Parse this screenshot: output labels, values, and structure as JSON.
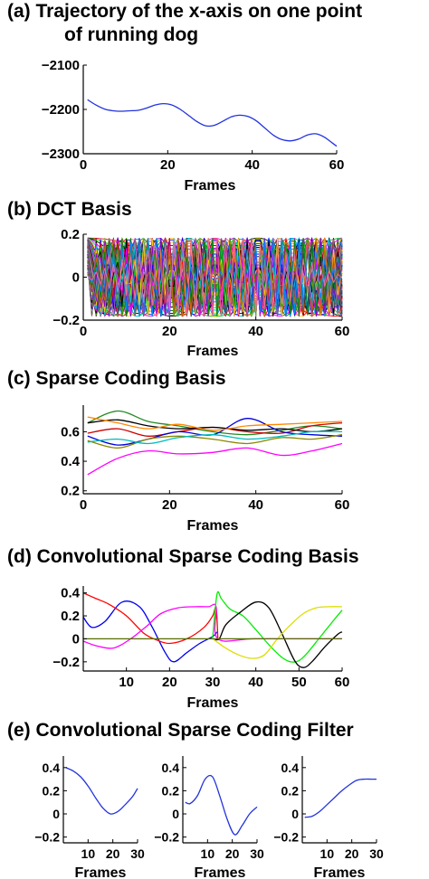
{
  "caption": "Fig. ... (a) Trajectory of the x-axis on one point of running dog ... (b) DCT basis ... (c) sparse coding basis ... (d) convolutional sparse coding basis ... (e) convolutional sparse coding filter",
  "panels_text": {
    "a_title_line1": "(a) Trajectory of the x-axis on one point",
    "a_title_line2": "of running dog",
    "b_title": "(b) DCT Basis",
    "c_title": "(c) Sparse Coding Basis",
    "d_title": "(d) Convolutional Sparse Coding Basis",
    "e_title": "(e) Convolutional Sparse Coding Filter"
  },
  "chart_data": [
    {
      "id": "a",
      "type": "line",
      "title": "(a) Trajectory of the x-axis on one point of running dog",
      "xlabel": "Frames",
      "ylabel": "",
      "xlim": [
        0,
        60
      ],
      "ylim": [
        -2300,
        -2100
      ],
      "xticks": [
        "0",
        "20",
        "40",
        "60"
      ],
      "yticks": [
        "−2100",
        "−2200",
        "−2300"
      ],
      "series": [
        {
          "color": "#2233dd",
          "x": [
            1,
            3,
            5,
            7,
            9,
            11,
            13,
            15,
            17,
            19,
            21,
            23,
            25,
            27,
            29,
            31,
            33,
            35,
            37,
            39,
            41,
            43,
            45,
            47,
            49,
            51,
            53,
            55,
            57,
            59,
            60
          ],
          "y": [
            -2178,
            -2190,
            -2199,
            -2203,
            -2204,
            -2203,
            -2202,
            -2197,
            -2190,
            -2187,
            -2190,
            -2200,
            -2214,
            -2228,
            -2237,
            -2236,
            -2227,
            -2217,
            -2213,
            -2216,
            -2226,
            -2242,
            -2258,
            -2268,
            -2271,
            -2267,
            -2258,
            -2255,
            -2262,
            -2276,
            -2283
          ]
        }
      ]
    },
    {
      "id": "b",
      "type": "line",
      "title": "(b) DCT Basis",
      "xlabel": "Frames",
      "ylabel": "",
      "xlim": [
        0,
        60
      ],
      "ylim": [
        -0.2,
        0.2
      ],
      "xticks": [
        "0",
        "20",
        "40",
        "60"
      ],
      "yticks": [
        "0.2",
        "0",
        "−0.2"
      ],
      "n_points": 60,
      "amplitude": 0.1826,
      "basis_indices": [
        0,
        1,
        2,
        3,
        4,
        5,
        6,
        7,
        8,
        9,
        10,
        11,
        12,
        13,
        14,
        15,
        16,
        17,
        18,
        19,
        20,
        21,
        22,
        23,
        24,
        25,
        26,
        27,
        28,
        29,
        30,
        31,
        32,
        33,
        34,
        35,
        36,
        37,
        38,
        39,
        40,
        41,
        42,
        43,
        44,
        45,
        46,
        47,
        48,
        49,
        50,
        51,
        52,
        53,
        54,
        55,
        56,
        57,
        58,
        59
      ],
      "colors": [
        "#0000ff",
        "#ff0000",
        "#00cc00",
        "#000000",
        "#ff00ff",
        "#00cccc",
        "#ffcc00",
        "#8800cc",
        "#cc6600",
        "#008800",
        "#0088ff",
        "#ff6699"
      ]
    },
    {
      "id": "c",
      "type": "line",
      "title": "(c) Sparse Coding Basis",
      "xlabel": "Frames",
      "ylabel": "",
      "xlim": [
        0,
        60
      ],
      "ylim": [
        0.18,
        0.78
      ],
      "xticks": [
        "0",
        "20",
        "40",
        "60"
      ],
      "yticks": [
        "0.6",
        "0.4",
        "0.2"
      ],
      "series": [
        {
          "color": "#228b22",
          "x": [
            1,
            8,
            15,
            22,
            30,
            38,
            46,
            53,
            60
          ],
          "y": [
            0.66,
            0.74,
            0.67,
            0.64,
            0.6,
            0.58,
            0.61,
            0.64,
            0.62
          ]
        },
        {
          "color": "#cc0000",
          "x": [
            1,
            8,
            15,
            22,
            30,
            38,
            46,
            53,
            60
          ],
          "y": [
            0.59,
            0.62,
            0.57,
            0.6,
            0.63,
            0.6,
            0.59,
            0.64,
            0.66
          ]
        },
        {
          "color": "#000000",
          "x": [
            1,
            8,
            15,
            22,
            30,
            38,
            46,
            53,
            60
          ],
          "y": [
            0.66,
            0.68,
            0.64,
            0.62,
            0.63,
            0.61,
            0.62,
            0.6,
            0.62
          ]
        },
        {
          "color": "#0000dd",
          "x": [
            1,
            8,
            15,
            22,
            30,
            38,
            46,
            53,
            60
          ],
          "y": [
            0.57,
            0.51,
            0.55,
            0.6,
            0.58,
            0.69,
            0.6,
            0.58,
            0.57
          ]
        },
        {
          "color": "#ff00ff",
          "x": [
            1,
            8,
            15,
            22,
            30,
            38,
            46,
            53,
            60
          ],
          "y": [
            0.31,
            0.42,
            0.47,
            0.45,
            0.46,
            0.49,
            0.44,
            0.47,
            0.52
          ]
        },
        {
          "color": "#888800",
          "x": [
            1,
            8,
            15,
            22,
            30,
            38,
            46,
            53,
            60
          ],
          "y": [
            0.54,
            0.49,
            0.55,
            0.57,
            0.55,
            0.52,
            0.56,
            0.55,
            0.58
          ]
        },
        {
          "color": "#00bbbb",
          "x": [
            1,
            8,
            15,
            22,
            30,
            38,
            46,
            53,
            60
          ],
          "y": [
            0.53,
            0.55,
            0.52,
            0.56,
            0.58,
            0.55,
            0.57,
            0.6,
            0.6
          ]
        },
        {
          "color": "#ff8800",
          "x": [
            1,
            8,
            15,
            22,
            30,
            38,
            46,
            53,
            60
          ],
          "y": [
            0.7,
            0.66,
            0.62,
            0.65,
            0.61,
            0.64,
            0.65,
            0.66,
            0.67
          ]
        }
      ]
    },
    {
      "id": "d",
      "type": "line",
      "title": "(d) Convolutional Sparse Coding Basis",
      "xlabel": "Frames",
      "ylabel": "",
      "xlim": [
        0,
        60
      ],
      "ylim": [
        -0.28,
        0.46
      ],
      "xticks": [
        "10",
        "20",
        "30",
        "40",
        "50",
        "60"
      ],
      "yticks": [
        "0.4",
        "0.2",
        "0",
        "−0.2"
      ],
      "series": [
        {
          "color": "#0000ee",
          "x": [
            0,
            2,
            5,
            9,
            13,
            16,
            19,
            21,
            24,
            27,
            30,
            31
          ],
          "y": [
            0.19,
            0.1,
            0.15,
            0.32,
            0.28,
            0.1,
            -0.12,
            -0.2,
            -0.12,
            -0.04,
            0.02,
            0.06
          ]
        },
        {
          "color": "#ff0000",
          "x": [
            0,
            3,
            6,
            10,
            14,
            17,
            20,
            24,
            28,
            30,
            30.8,
            31.2
          ],
          "y": [
            0.4,
            0.35,
            0.3,
            0.2,
            0.05,
            -0.01,
            -0.04,
            0.0,
            0.1,
            0.2,
            0.27,
            0.0
          ]
        },
        {
          "color": "#ff00ff",
          "x": [
            0,
            3,
            7,
            11,
            15,
            18,
            22,
            26,
            29,
            30.8,
            31.2,
            40,
            60
          ],
          "y": [
            -0.02,
            -0.06,
            -0.08,
            0.0,
            0.12,
            0.22,
            0.27,
            0.28,
            0.28,
            0.28,
            0.0,
            0.0,
            0.0
          ]
        },
        {
          "color": "#00ee00",
          "x": [
            30,
            31,
            32,
            34,
            37,
            40,
            43,
            46,
            48,
            50,
            52,
            55,
            58,
            60
          ],
          "y": [
            0.01,
            0.39,
            0.35,
            0.26,
            0.2,
            0.08,
            -0.05,
            -0.16,
            -0.2,
            -0.19,
            -0.12,
            0.02,
            0.16,
            0.25
          ]
        },
        {
          "color": "#000000",
          "x": [
            30,
            31.5,
            33,
            36,
            40,
            43,
            46,
            49,
            51,
            53,
            56,
            59,
            60
          ],
          "y": [
            0.0,
            0.0,
            0.12,
            0.22,
            0.32,
            0.27,
            0.05,
            -0.19,
            -0.25,
            -0.2,
            -0.07,
            0.04,
            0.06
          ]
        },
        {
          "color": "#dddd00",
          "x": [
            30,
            33,
            36,
            39,
            42,
            45,
            48,
            51,
            54,
            57,
            60
          ],
          "y": [
            0.0,
            -0.08,
            -0.14,
            -0.17,
            -0.14,
            0.0,
            0.12,
            0.22,
            0.27,
            0.28,
            0.28
          ]
        },
        {
          "color": "#556b00",
          "x": [
            0,
            30,
            60
          ],
          "y": [
            0.0,
            0.0,
            0.0
          ]
        }
      ]
    },
    {
      "id": "e1",
      "type": "line",
      "title": "(e) Convolutional Sparse Coding Filter",
      "xlabel": "Frames",
      "xlim": [
        0,
        30
      ],
      "ylim": [
        -0.25,
        0.5
      ],
      "xticks": [
        "10",
        "20",
        "30"
      ],
      "yticks": [
        "0.4",
        "0.2",
        "0",
        "−0.2"
      ],
      "series": [
        {
          "color": "#2233dd",
          "x": [
            1,
            4,
            7,
            10,
            13,
            16,
            19,
            22,
            25,
            28,
            30
          ],
          "y": [
            0.4,
            0.37,
            0.32,
            0.24,
            0.14,
            0.05,
            0.0,
            0.02,
            0.08,
            0.15,
            0.22
          ]
        }
      ]
    },
    {
      "id": "e2",
      "type": "line",
      "xlabel": "Frames",
      "xlim": [
        0,
        30
      ],
      "ylim": [
        -0.25,
        0.5
      ],
      "xticks": [
        "10",
        "20",
        "30"
      ],
      "yticks": [
        "0.4",
        "0.2",
        "0",
        "−0.2"
      ],
      "series": [
        {
          "color": "#2233dd",
          "x": [
            1,
            3,
            6,
            9,
            12,
            15,
            18,
            21,
            24,
            27,
            30
          ],
          "y": [
            0.1,
            0.09,
            0.16,
            0.3,
            0.32,
            0.15,
            -0.05,
            -0.18,
            -0.1,
            0.0,
            0.06
          ]
        }
      ]
    },
    {
      "id": "e3",
      "type": "line",
      "xlabel": "Frames",
      "xlim": [
        0,
        30
      ],
      "ylim": [
        -0.25,
        0.5
      ],
      "xticks": [
        "10",
        "20",
        "30"
      ],
      "yticks": [
        "0.4",
        "0.2",
        "0",
        "−0.2"
      ],
      "series": [
        {
          "color": "#2233dd",
          "x": [
            1,
            4,
            7,
            10,
            13,
            16,
            19,
            22,
            25,
            28,
            30
          ],
          "y": [
            -0.03,
            -0.02,
            0.02,
            0.08,
            0.14,
            0.2,
            0.25,
            0.29,
            0.3,
            0.3,
            0.3
          ]
        }
      ]
    }
  ]
}
